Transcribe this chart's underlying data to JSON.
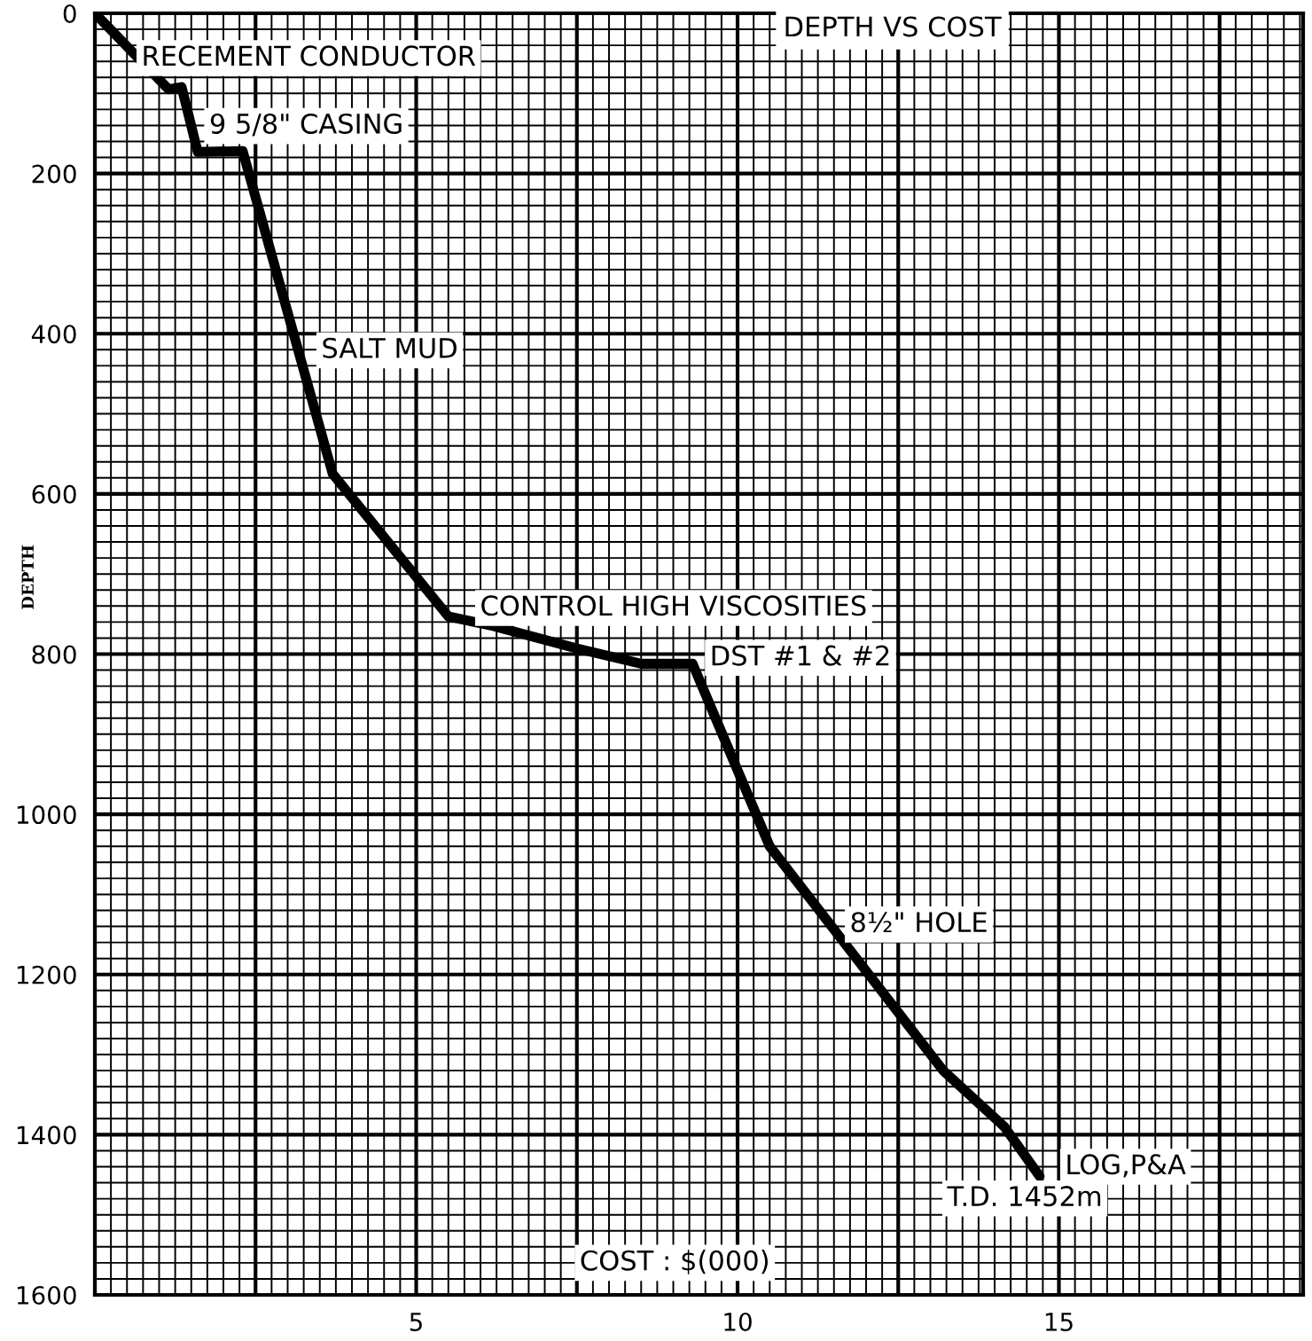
{
  "chart_data": {
    "type": "line",
    "title": "DEPTH VS COST",
    "xlabel": "COST : $(000)",
    "ylabel": "DEPTH",
    "x": [
      0,
      1.15,
      1.35,
      1.6,
      2.3,
      3.7,
      5.5,
      6.2,
      7.5,
      8.5,
      9.3,
      10.5,
      13.2,
      14.15,
      14.7
    ],
    "series": [
      {
        "color": "#000000",
        "values": [
          0,
          95,
          92,
          173,
          172,
          575,
          753,
          765,
          793,
          812,
          812,
          1040,
          1320,
          1390,
          1452
        ]
      }
    ],
    "xlim": [
      0,
      18.8
    ],
    "xticks": [
      5,
      10,
      15
    ],
    "ylim": [
      1600,
      0
    ],
    "yticks": [
      0,
      200,
      400,
      600,
      800,
      1000,
      1200,
      1400,
      1600
    ],
    "grid": true,
    "marker": "none",
    "line_style": "solid",
    "annotations": [
      "RECEMENT CONDUCTOR",
      "9 5/8\" CASING",
      "SALT MUD",
      "CONTROL HIGH VISCOSITIES",
      "DST #1 & #2",
      "8½\" HOLE",
      "LOG,P&A",
      {
        "text": "T.D. 1452m",
        "x": 14.7,
        "y": 1452
      }
    ]
  }
}
